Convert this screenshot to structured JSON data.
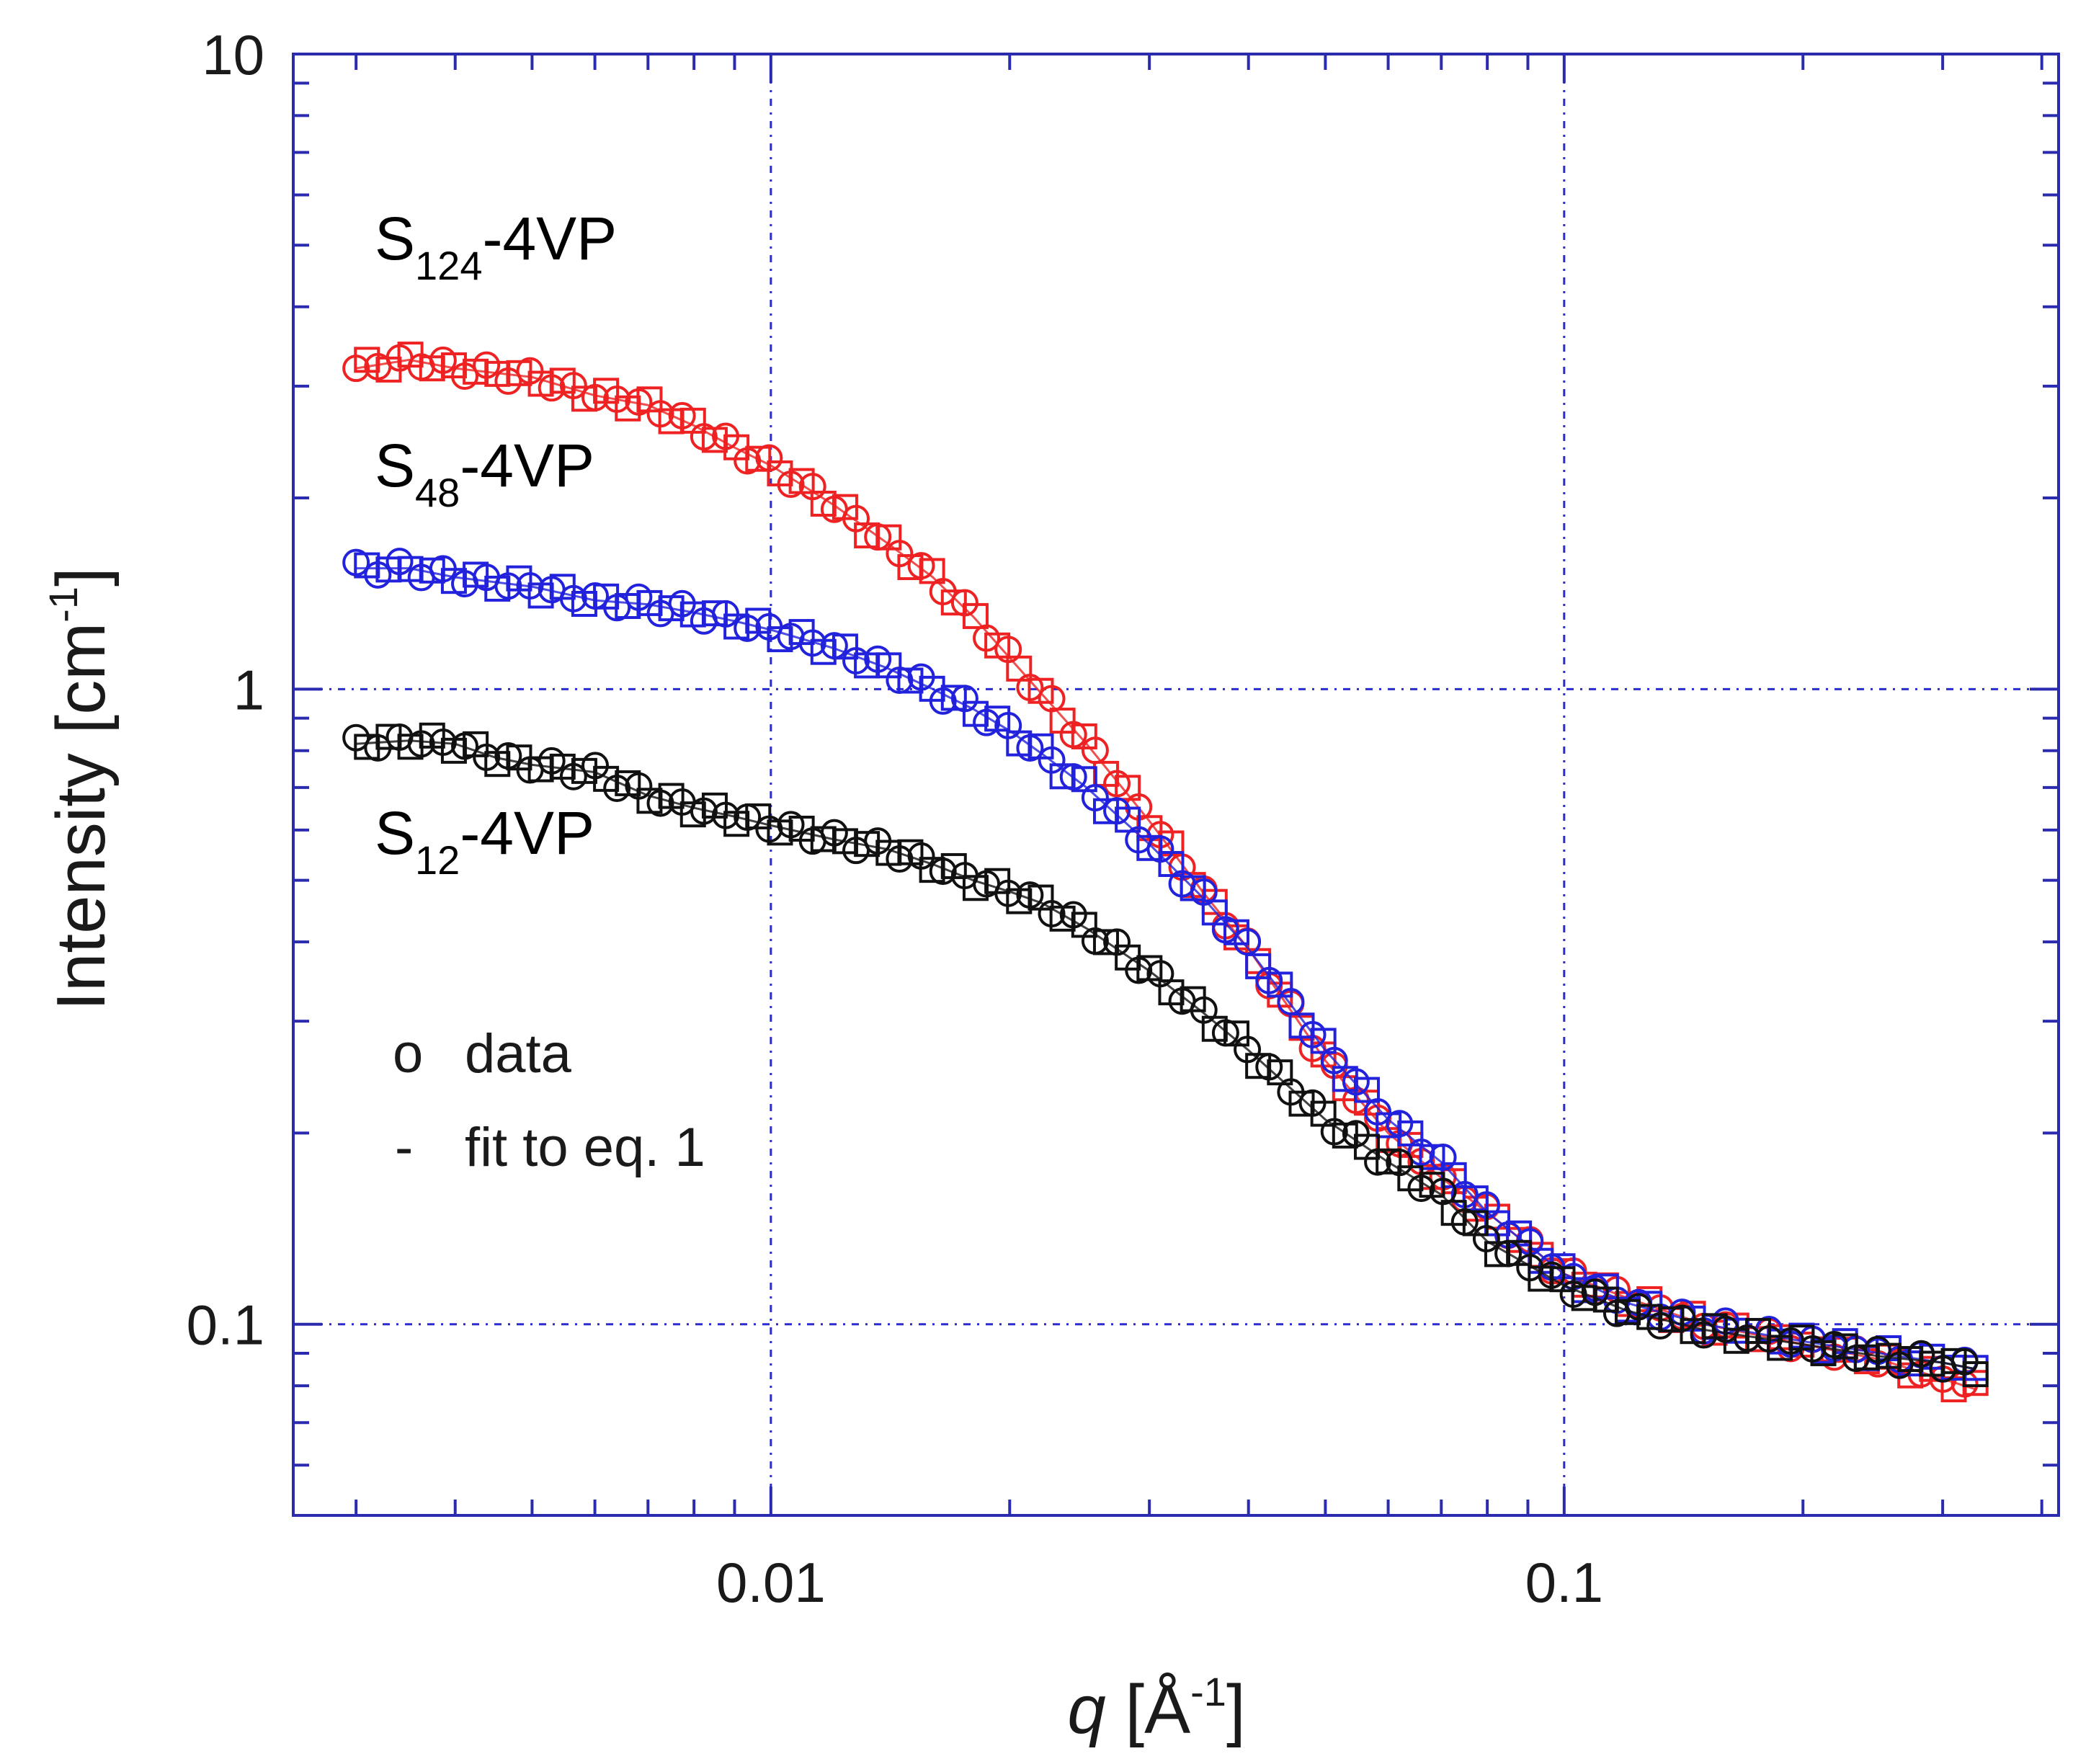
{
  "chart_data": {
    "type": "scatter",
    "x_scale": "log",
    "y_scale": "log",
    "xlim": [
      0.0025,
      0.42
    ],
    "ylim": [
      0.05,
      10
    ],
    "xlabel": {
      "var": "q",
      "text": " [Å",
      "sup": "-1",
      "close": "]"
    },
    "ylabel": {
      "text": "Intensity [cm",
      "sup": "-1",
      "close": "]"
    },
    "x_ticks": [
      {
        "value": 0.01,
        "label": "0.01"
      },
      {
        "value": 0.1,
        "label": "0.1"
      }
    ],
    "y_ticks": [
      {
        "value": 10,
        "label": "10"
      },
      {
        "value": 1,
        "label": "1"
      },
      {
        "value": 0.1,
        "label": "0.1"
      }
    ],
    "grid": true,
    "frame_color": "#2b2bb0",
    "grid_color": "#2b2bd0",
    "series": [
      {
        "name": "S124-4VP",
        "label_base": "S",
        "label_sub": "124",
        "label_rest": "-4VP",
        "color": "#ee2222",
        "x": [
          0.003,
          0.0035,
          0.004,
          0.005,
          0.006,
          0.007,
          0.008,
          0.009,
          0.01,
          0.012,
          0.014,
          0.016,
          0.018,
          0.02,
          0.022,
          0.025,
          0.03,
          0.035,
          0.04,
          0.05,
          0.06,
          0.07,
          0.08,
          0.1,
          0.12,
          0.15,
          0.2,
          0.25,
          0.3,
          0.33
        ],
        "y": [
          3.2,
          3.3,
          3.2,
          3.1,
          2.9,
          2.8,
          2.6,
          2.4,
          2.25,
          1.95,
          1.7,
          1.5,
          1.3,
          1.12,
          0.98,
          0.82,
          0.62,
          0.48,
          0.39,
          0.26,
          0.2,
          0.17,
          0.15,
          0.12,
          0.11,
          0.1,
          0.093,
          0.088,
          0.082,
          0.079
        ]
      },
      {
        "name": "S48-4VP",
        "label_base": "S",
        "label_sub": "48",
        "label_rest": "-4VP",
        "color": "#2222dd",
        "x": [
          0.003,
          0.0035,
          0.004,
          0.005,
          0.006,
          0.007,
          0.008,
          0.009,
          0.01,
          0.012,
          0.014,
          0.016,
          0.018,
          0.02,
          0.022,
          0.025,
          0.03,
          0.035,
          0.04,
          0.05,
          0.06,
          0.07,
          0.08,
          0.1,
          0.12,
          0.15,
          0.2,
          0.25,
          0.3,
          0.33
        ],
        "y": [
          1.55,
          1.55,
          1.5,
          1.45,
          1.38,
          1.36,
          1.32,
          1.28,
          1.24,
          1.16,
          1.08,
          1.0,
          0.93,
          0.86,
          0.79,
          0.7,
          0.57,
          0.47,
          0.39,
          0.27,
          0.21,
          0.18,
          0.15,
          0.12,
          0.108,
          0.1,
          0.094,
          0.09,
          0.087,
          0.085
        ]
      },
      {
        "name": "S12-4VP",
        "label_base": "S",
        "label_sub": "12",
        "label_rest": "-4VP",
        "color": "#111111",
        "x": [
          0.003,
          0.0035,
          0.004,
          0.0045,
          0.005,
          0.006,
          0.007,
          0.008,
          0.009,
          0.01,
          0.012,
          0.014,
          0.016,
          0.018,
          0.02,
          0.022,
          0.025,
          0.03,
          0.035,
          0.04,
          0.05,
          0.06,
          0.07,
          0.08,
          0.1,
          0.12,
          0.15,
          0.2,
          0.25,
          0.3,
          0.33
        ],
        "y": [
          0.82,
          0.83,
          0.82,
          0.78,
          0.76,
          0.74,
          0.68,
          0.65,
          0.63,
          0.61,
          0.58,
          0.56,
          0.53,
          0.5,
          0.48,
          0.46,
          0.42,
          0.36,
          0.31,
          0.27,
          0.21,
          0.18,
          0.16,
          0.135,
          0.115,
          0.105,
          0.098,
          0.093,
          0.089,
          0.087,
          0.085
        ]
      }
    ],
    "legend": [
      {
        "symbol": "o",
        "text": "data"
      },
      {
        "symbol": "-",
        "text": "fit to eq. 1"
      }
    ]
  }
}
